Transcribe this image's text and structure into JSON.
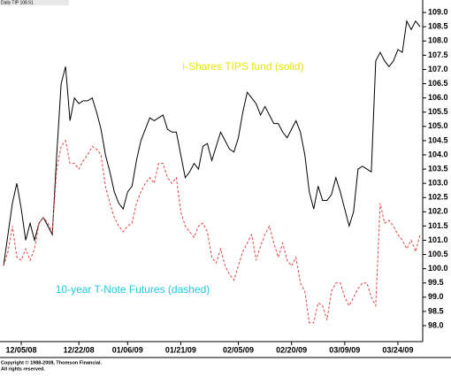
{
  "header": "Daily TIP 108.51",
  "copyright": [
    "Copyright © 1988-2008, Thomson Financial.",
    "All rights reserved."
  ],
  "chart_data": {
    "type": "line",
    "annotations": [
      {
        "text": "i-Shares TIPS fund (solid)",
        "color": "#e6e600"
      },
      {
        "text": "10-year T-Note Futures (dashed)",
        "color": "#22c8dc"
      }
    ],
    "categories": [
      null,
      null,
      null,
      null,
      "12/05/08",
      null,
      null,
      null,
      null,
      null,
      null,
      null,
      null,
      null,
      null,
      null,
      null,
      "12/22/08",
      null,
      null,
      null,
      null,
      null,
      null,
      null,
      null,
      null,
      null,
      "01/06/09",
      null,
      null,
      null,
      null,
      null,
      null,
      null,
      null,
      null,
      null,
      null,
      "01/21/09",
      null,
      null,
      null,
      null,
      null,
      null,
      null,
      null,
      null,
      null,
      null,
      null,
      "02/05/09",
      null,
      null,
      null,
      null,
      null,
      null,
      null,
      null,
      null,
      null,
      null,
      "02/20/09",
      null,
      null,
      null,
      null,
      null,
      null,
      null,
      null,
      null,
      null,
      null,
      "03/09/09",
      null,
      null,
      null,
      null,
      null,
      null,
      null,
      null,
      null,
      null,
      null,
      "03/24/09",
      null,
      null,
      null,
      null,
      null
    ],
    "series": [
      {
        "color": "#000000",
        "dashed": false,
        "values": [
          100.1,
          101.2,
          102.3,
          103.0,
          102.1,
          101.0,
          101.6,
          101.0,
          101.6,
          101.8,
          101.5,
          101.2,
          104.0,
          106.5,
          107.1,
          105.2,
          106.0,
          105.8,
          105.9,
          105.9,
          106.0,
          105.5,
          104.9,
          104.0,
          103.4,
          102.7,
          102.3,
          102.1,
          102.7,
          102.9,
          103.8,
          104.5,
          104.9,
          105.3,
          105.2,
          105.3,
          105.4,
          104.9,
          104.8,
          104.8,
          104.0,
          103.2,
          103.4,
          103.7,
          103.5,
          104.3,
          104.4,
          103.8,
          104.3,
          104.8,
          104.5,
          104.2,
          104.1,
          104.6,
          105.5,
          106.2,
          106.0,
          105.8,
          105.4,
          105.7,
          105.4,
          105.1,
          105.1,
          104.8,
          104.6,
          104.9,
          105.2,
          104.8,
          104.0,
          102.7,
          102.1,
          102.9,
          102.4,
          102.4,
          102.6,
          103.2,
          102.7,
          102.1,
          101.5,
          102.0,
          103.5,
          103.6,
          103.5,
          103.4,
          107.3,
          107.6,
          107.3,
          107.1,
          107.3,
          107.7,
          107.6,
          108.7,
          108.4,
          108.7,
          108.5
        ]
      },
      {
        "color": "#e04848",
        "dashed": true,
        "values": [
          100.1,
          100.6,
          101.5,
          100.4,
          100.3,
          100.7,
          100.3,
          100.7,
          101.6,
          101.8,
          101.6,
          101.3,
          103.5,
          104.3,
          104.5,
          103.7,
          103.7,
          103.5,
          103.8,
          104.0,
          104.3,
          104.2,
          104.0,
          102.9,
          102.3,
          101.8,
          101.5,
          101.3,
          101.5,
          101.6,
          102.3,
          102.7,
          103.0,
          103.2,
          103.0,
          103.7,
          103.7,
          103.2,
          103.0,
          103.2,
          102.0,
          101.5,
          101.3,
          101.1,
          101.5,
          101.6,
          101.3,
          100.4,
          100.2,
          100.7,
          100.1,
          99.8,
          99.6,
          100.1,
          100.6,
          100.9,
          101.2,
          100.3,
          100.8,
          101.2,
          101.5,
          100.9,
          100.4,
          100.9,
          100.3,
          100.1,
          100.4,
          99.5,
          99.2,
          98.1,
          98.1,
          98.8,
          98.7,
          98.2,
          99.2,
          99.5,
          99.5,
          99.0,
          98.7,
          99.0,
          99.3,
          99.5,
          99.5,
          99.0,
          98.7,
          102.3,
          101.6,
          101.7,
          101.5,
          101.2,
          101.0,
          100.7,
          101.0,
          100.6,
          101.2
        ]
      }
    ],
    "ylim": [
      97.44,
      109.44
    ],
    "yticks": [
      {
        "value": 98,
        "label": "98.0"
      },
      {
        "value": 98.5,
        "label": "98.5"
      },
      {
        "value": 99,
        "label": "99.0"
      },
      {
        "value": 99.5,
        "label": "99.5"
      },
      {
        "value": 100,
        "label": "100.0"
      },
      {
        "value": 100.5,
        "label": "100.5"
      },
      {
        "value": 101,
        "label": "101.0"
      },
      {
        "value": 101.5,
        "label": "101.5"
      },
      {
        "value": 102,
        "label": "102.0"
      },
      {
        "value": 102.5,
        "label": "102.5"
      },
      {
        "value": 103,
        "label": "103.0"
      },
      {
        "value": 103.5,
        "label": "103.5"
      },
      {
        "value": 104,
        "label": "104.0"
      },
      {
        "value": 104.5,
        "label": "104.5"
      },
      {
        "value": 105,
        "label": "105.0"
      },
      {
        "value": 105.5,
        "label": "105.5"
      },
      {
        "value": 106,
        "label": "106.0"
      },
      {
        "value": 106.5,
        "label": "106.5"
      },
      {
        "value": 107,
        "label": "107.0"
      },
      {
        "value": 107.5,
        "label": "107.5"
      },
      {
        "value": 108,
        "label": "108.0"
      },
      {
        "value": 108.5,
        "label": "108.5"
      },
      {
        "value": 109,
        "label": "109.0"
      }
    ],
    "grid": false
  }
}
